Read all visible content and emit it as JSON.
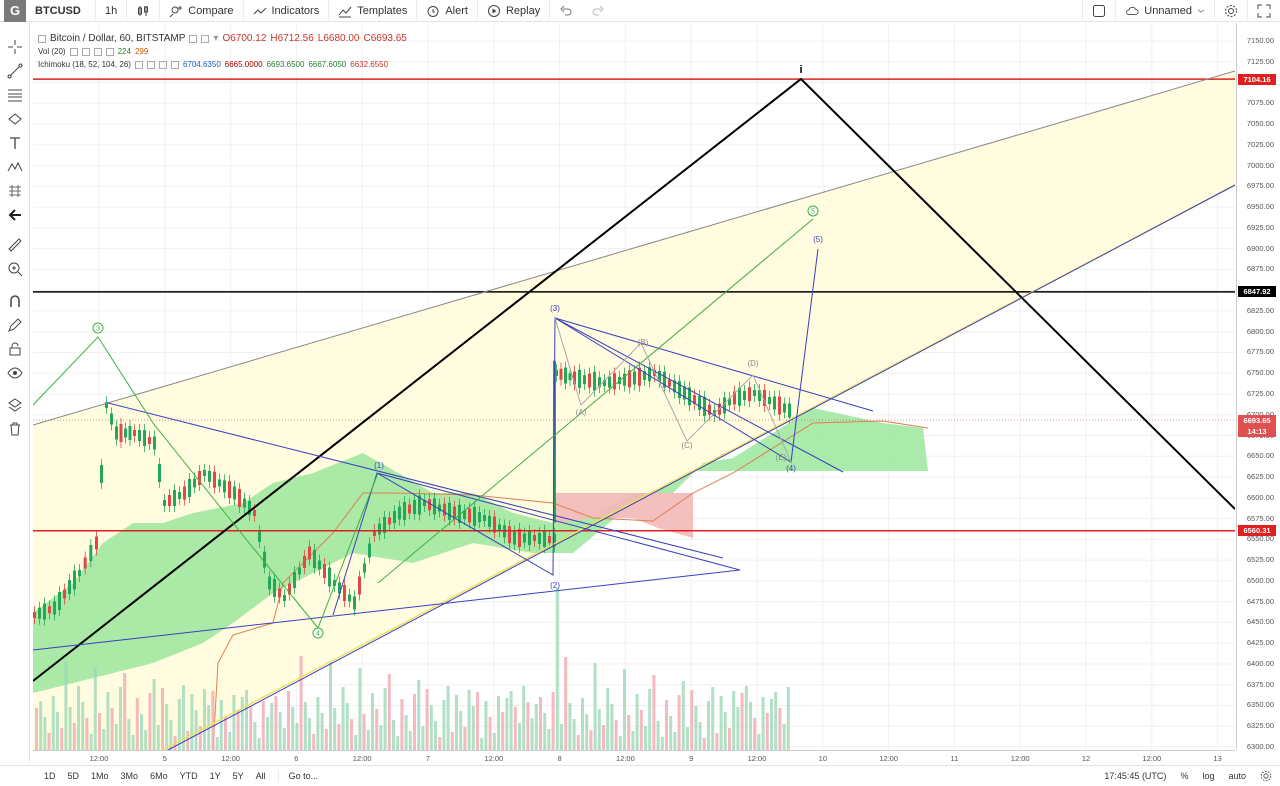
{
  "topbar": {
    "logo": "G",
    "symbol": "BTCUSD",
    "interval": "1h",
    "compare": "Compare",
    "indicators": "Indicators",
    "templates": "Templates",
    "alert": "Alert",
    "replay": "Replay",
    "layout_name": "Unnamed"
  },
  "legend": {
    "title": "Bitcoin / Dollar, 60, BITSTAMP",
    "open": "O6700.12",
    "high": "H6712.56",
    "low": "L6680.00",
    "close": "C6693.65",
    "vol_label": "Vol (20)",
    "vol_1": "224",
    "vol_2": "299",
    "ichi_label": "Ichimoku (18, 52, 104, 26)",
    "ichi_1": "6704.6350",
    "ichi_2": "6665.0000",
    "ichi_3": "6693.6500",
    "ichi_4": "6667.6050",
    "ichi_5": "6632.6550"
  },
  "price_scale": [
    "7150.00",
    "7125.00",
    "7100.00",
    "7075.00",
    "7050.00",
    "7025.00",
    "7000.00",
    "6975.00",
    "6950.00",
    "6925.00",
    "6900.00",
    "6875.00",
    "6850.00",
    "6825.00",
    "6800.00",
    "6775.00",
    "6750.00",
    "6725.00",
    "6700.00",
    "6675.00",
    "6650.00",
    "6625.00",
    "6600.00",
    "6575.00",
    "6550.00",
    "6525.00",
    "6500.00",
    "6475.00",
    "6450.00",
    "6425.00",
    "6400.00",
    "6375.00",
    "6350.00",
    "6325.00",
    "6300.00"
  ],
  "price_tags": {
    "top_red": "7104.16",
    "black": "6847.92",
    "current": "6693.65",
    "countdown": "14:13",
    "bottom_red": "6560.31"
  },
  "time_scale": [
    "12:00",
    "5",
    "12:00",
    "6",
    "12:00",
    "7",
    "12:00",
    "8",
    "12:00",
    "9",
    "12:00",
    "10",
    "12:00",
    "11",
    "12:00",
    "12",
    "12:00",
    "13"
  ],
  "wave_labels": {
    "i": "i",
    "g3": "3",
    "g4": "4",
    "g5": "5",
    "b1": "(1)",
    "b2": "(2)",
    "b3": "(3)",
    "b4": "(4)",
    "b5": "(5)",
    "A": "(A)",
    "B": "(B)",
    "C": "(C)",
    "D": "(D)",
    "E": "(E)"
  },
  "bottombar": {
    "ranges": [
      "1D",
      "5D",
      "1Mo",
      "3Mo",
      "6Mo",
      "YTD",
      "1Y",
      "5Y",
      "All"
    ],
    "goto": "Go to...",
    "time": "17:45:45 (UTC)",
    "percent": "%",
    "log": "log",
    "auto": "auto"
  },
  "colors": {
    "red_line": "#e02020",
    "black_line": "#000000",
    "blue_line": "#3a3fbf",
    "green_wave": "#3cb043",
    "cloud_green": "#9be69b",
    "cloud_red": "#f2b8b8",
    "channel_yellow": "#fffce0"
  }
}
